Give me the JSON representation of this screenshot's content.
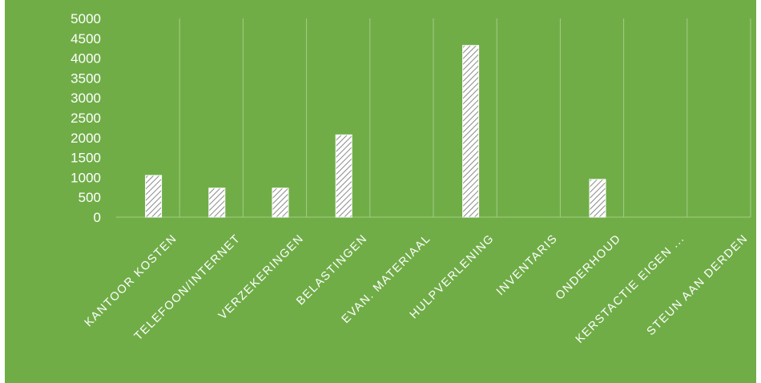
{
  "colors": {
    "background": "#70ad47",
    "gridline": "#a3cd86",
    "bar_fill": "#ffffff",
    "bar_hatch": "#8a8a8a",
    "text": "#ffffff"
  },
  "chart_data": {
    "type": "bar",
    "title": "",
    "xlabel": "",
    "ylabel": "",
    "ylim": [
      0,
      5000
    ],
    "yticks": [
      0,
      500,
      1000,
      1500,
      2000,
      2500,
      3000,
      3500,
      4000,
      4500,
      5000
    ],
    "categories": [
      "KANTOOR KOSTEN",
      "TELEFOON/INTERNET",
      "VERZEKERINGEN",
      "BELASTINGEN",
      "EVAN. MATERIAAL",
      "HULPVERLENING",
      "INVENTARIS",
      "ONDERHOUD",
      "KERSTACTIE EIGEN ...",
      "STEUN AAN DERDEN"
    ],
    "values": [
      1050,
      730,
      730,
      2070,
      0,
      4320,
      0,
      950,
      0,
      0
    ],
    "grid": "vertical gridlines between categories",
    "legend": "none"
  }
}
